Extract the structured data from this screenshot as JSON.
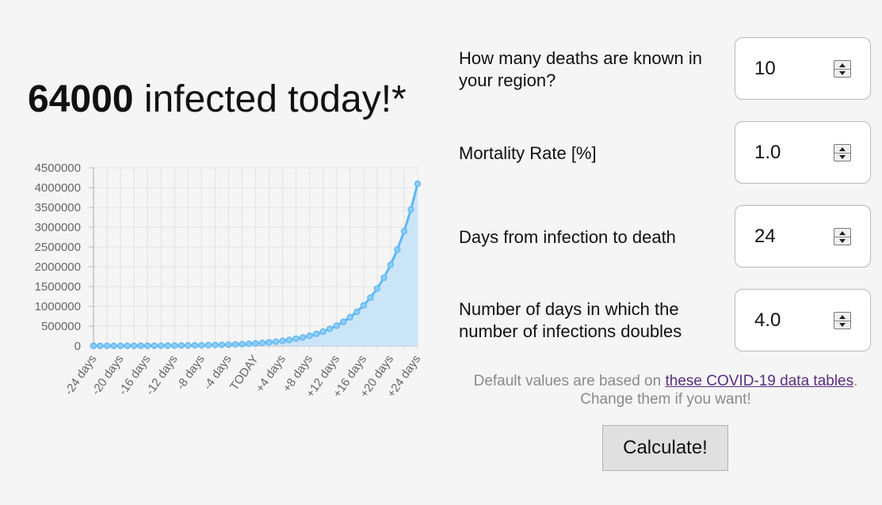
{
  "headline": {
    "count": "64000",
    "text": " infected today!*"
  },
  "form": {
    "deaths": {
      "label": "How many deaths are known in your region?",
      "value": "10"
    },
    "mortality": {
      "label": "Mortality Rate [%]",
      "value": "1.0"
    },
    "days_to_death": {
      "label": "Days from infection to death",
      "value": "24"
    },
    "doubling": {
      "label": "Number of days in which the number of infections doubles",
      "value": "4.0"
    }
  },
  "note": {
    "prefix": "Default values are based on ",
    "link": "these COVID-19 data tables",
    "suffix": ".",
    "line2": "Change them if you want!"
  },
  "calculate_label": "Calculate!",
  "colors": {
    "line": "#5db8f5",
    "fill": "#c6e3f8",
    "point": "#8ecdf5",
    "link": "#5a2d82"
  },
  "chart_data": {
    "type": "area",
    "x_labels": [
      "-24 days",
      "-20 days",
      "-16 days",
      "-12 days",
      "-8 days",
      "-4 days",
      "TODAY",
      "+4 days",
      "+8 days",
      "+12 days",
      "+16 days",
      "+20 days",
      "+24 days"
    ],
    "y_ticks": [
      "0",
      "500000",
      "1000000",
      "1500000",
      "2000000",
      "2500000",
      "3000000",
      "3500000",
      "4000000",
      "4500000"
    ],
    "ylim": [
      0,
      4500000
    ],
    "series": [
      {
        "values": [
          1000,
          1189,
          1414,
          1682,
          2000,
          2378,
          2828,
          3364,
          4000,
          4757,
          5657,
          6727,
          8000,
          9514,
          11314,
          13454,
          16000,
          19027,
          22627,
          26909,
          32000,
          38055,
          45255,
          53817,
          64000,
          76109,
          90510,
          107635,
          128000,
          152219,
          181019,
          215269,
          256000,
          304437,
          362039,
          430539,
          512000,
          608874,
          724077,
          861078,
          1024000,
          1217748,
          1448155,
          1722156,
          2048000,
          2435496,
          2896309,
          3444312,
          4096000
        ]
      }
    ],
    "grid": true
  }
}
